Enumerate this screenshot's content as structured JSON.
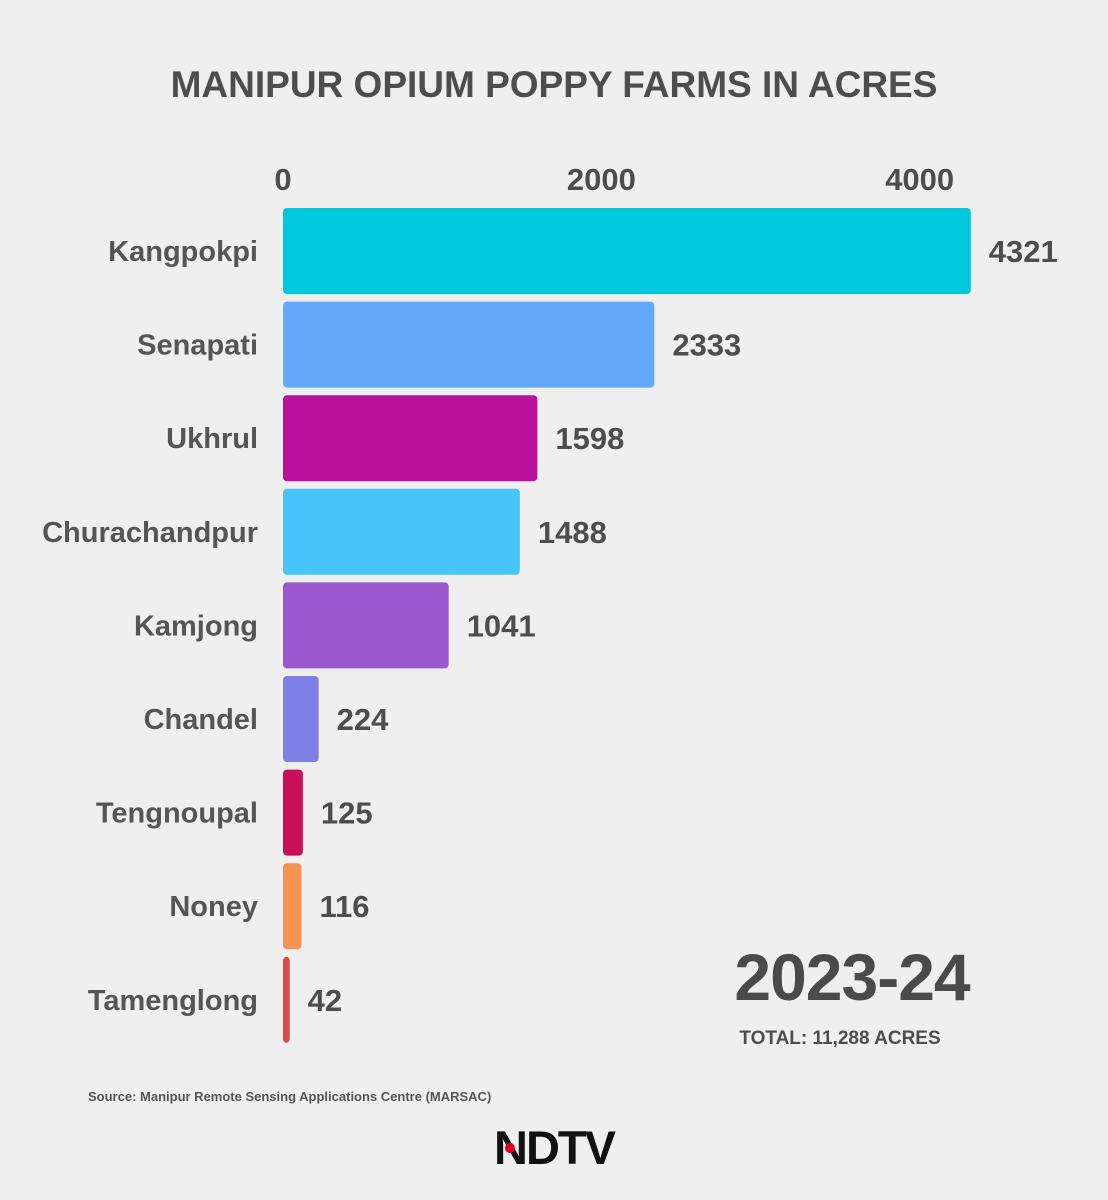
{
  "chart_data": {
    "type": "bar",
    "orientation": "horizontal",
    "title": "MANIPUR OPIUM POPPY FARMS IN ACRES",
    "categories": [
      "Kangpokpi",
      "Senapati",
      "Ukhrul",
      "Churachandpur",
      "Kamjong",
      "Chandel",
      "Tengnoupal",
      "Noney",
      "Tamenglong"
    ],
    "values": [
      4321,
      2333,
      1598,
      1488,
      1041,
      224,
      125,
      116,
      42
    ],
    "colors": [
      "#00c8dc",
      "#64a8fa",
      "#b8109a",
      "#48c4fa",
      "#9a58ce",
      "#7e80e6",
      "#c8105a",
      "#f49452",
      "#da4a48"
    ],
    "xticks": [
      0,
      2000,
      4000
    ],
    "xlim": [
      0,
      4321
    ],
    "xaxis_position": "top",
    "grid": false,
    "legend": "none"
  },
  "annotation": {
    "period": "2023-24",
    "total": "TOTAL: 11,288 ACRES"
  },
  "source": "Source: Manipur Remote Sensing Applications Centre (MARSAC)",
  "logo": {
    "text": "NDTV",
    "accent_color": "#e3001b"
  }
}
